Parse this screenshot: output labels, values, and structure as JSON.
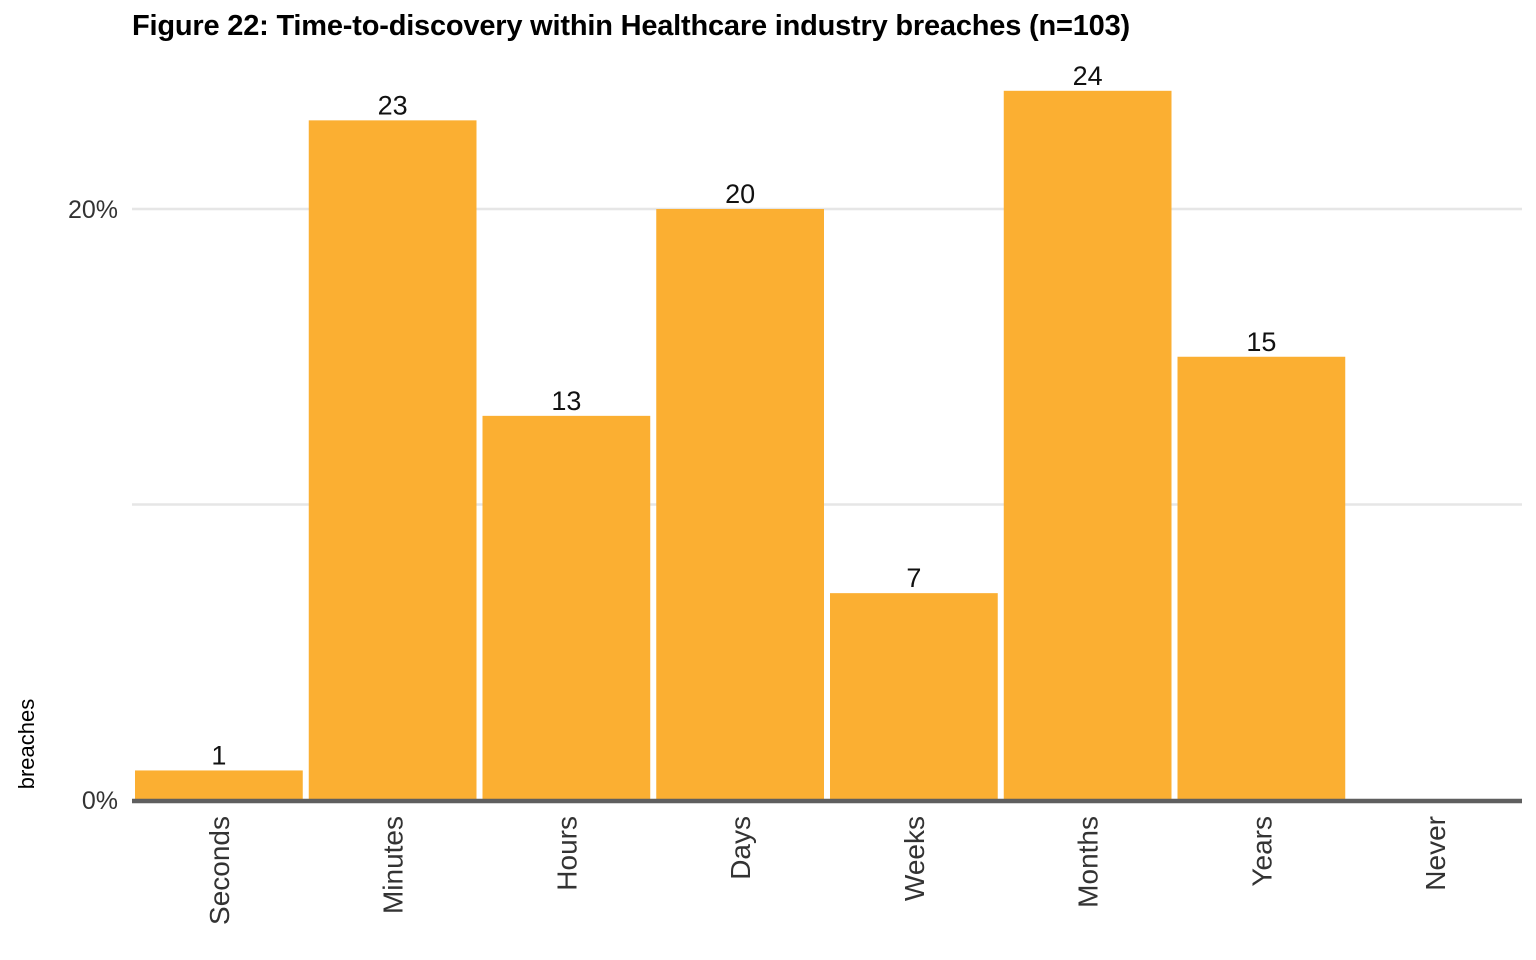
{
  "chart_data": {
    "type": "bar",
    "title": "Figure 22: Time-to-discovery within Healthcare industry breaches (n=103)",
    "ylabel": "breaches",
    "categories": [
      "Seconds",
      "Minutes",
      "Hours",
      "Days",
      "Weeks",
      "Months",
      "Years",
      "Never"
    ],
    "values": [
      1,
      23,
      13,
      20,
      7,
      24,
      15,
      0
    ],
    "data_labels": [
      "1",
      "23",
      "13",
      "20",
      "7",
      "24",
      "15",
      ""
    ],
    "y_ticks": [
      {
        "value": 0,
        "label": "0%"
      },
      {
        "value": 10,
        "label": ""
      },
      {
        "value": 20,
        "label": "20%"
      }
    ],
    "ylim": [
      0,
      27
    ],
    "grid": true,
    "colors": {
      "bar": "#FBAF32",
      "grid": "#E6E6E6",
      "baseline": "#5F5F5F"
    }
  }
}
